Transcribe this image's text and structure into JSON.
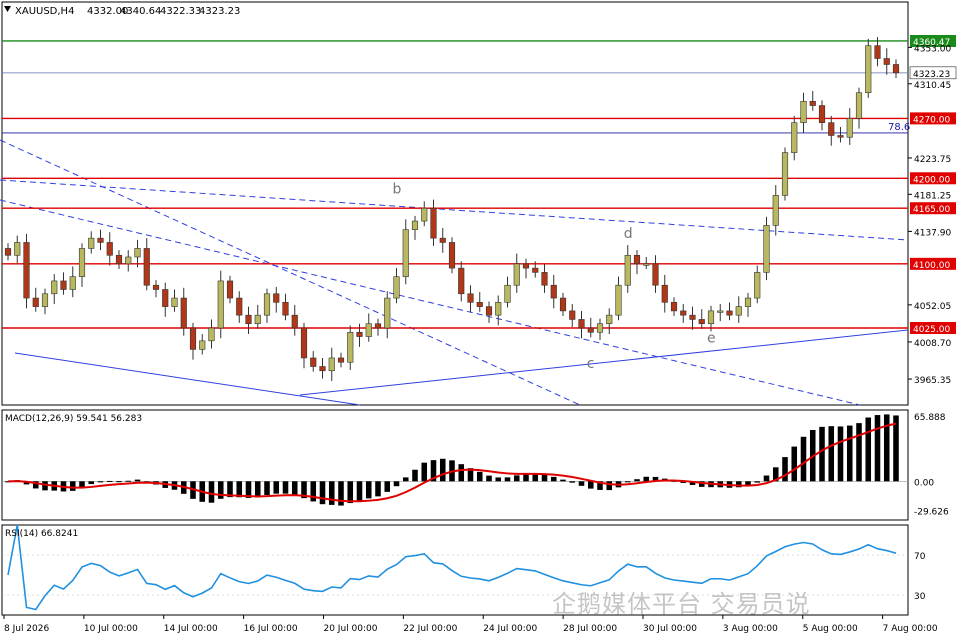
{
  "header": {
    "symbol": "XAUUSD,H4",
    "open": "4332.00",
    "high": "4340.64",
    "low": "4322.33",
    "close": "4323.23"
  },
  "watermark": "企鹅媒体平台 交易员说",
  "colors": {
    "bull": "#b8b860",
    "bear": "#b03818",
    "wick": "#333333",
    "level_red": "#e00000",
    "level_green": "#1a8a1a",
    "fib_blue": "#1a1aa0",
    "trend_blue": "#3040e0",
    "macd_signal": "#e00000",
    "rsi_line": "#2090e0"
  },
  "chart_data": [
    {
      "type": "candlestick",
      "title": "XAUUSD,H4",
      "ylim": [
        3935,
        4385
      ],
      "price_labels": [
        "4353.00",
        "4310.45",
        "4223.75",
        "4181.25",
        "4137.90",
        "4052.05",
        "4008.70",
        "3965.35"
      ],
      "levels": [
        {
          "value": 4360.47,
          "label": "4360.47",
          "kind": "green"
        },
        {
          "value": 4323.23,
          "label": "4323.23",
          "kind": "current"
        },
        {
          "value": 4270.0,
          "label": "4270.00",
          "kind": "red"
        },
        {
          "value": 4200.0,
          "label": "4200.00",
          "kind": "red"
        },
        {
          "value": 4165.0,
          "label": "4165.00",
          "kind": "red"
        },
        {
          "value": 4100.0,
          "label": "4100.00",
          "kind": "red"
        },
        {
          "value": 4025.0,
          "label": "4025.00",
          "kind": "red"
        }
      ],
      "fib_line": {
        "value": 4253,
        "label": "78.6"
      },
      "wave_labels": [
        {
          "text": "b",
          "index": 42,
          "value": 4182
        },
        {
          "text": "c",
          "index": 63,
          "value": 3978
        },
        {
          "text": "d",
          "index": 67,
          "value": 4130
        },
        {
          "text": "e",
          "index": 76,
          "value": 4008
        }
      ],
      "x_labels": [
        "8 Jul 2026",
        "10 Jul 00:00",
        "14 Jul 00:00",
        "16 Jul 00:00",
        "20 Jul 00:00",
        "22 Jul 00:00",
        "24 Jul 00:00",
        "28 Jul 00:00",
        "30 Jul 00:00",
        "3 Aug 00:00",
        "5 Aug 00:00",
        "7 Aug 00:00"
      ],
      "closes": [
        4110,
        4125,
        4060,
        4050,
        4065,
        4080,
        4070,
        4085,
        4118,
        4130,
        4125,
        4110,
        4100,
        4108,
        4118,
        4075,
        4070,
        4050,
        4060,
        4025,
        4000,
        4010,
        4025,
        4080,
        4060,
        4040,
        4030,
        4040,
        4065,
        4055,
        4040,
        4025,
        3990,
        3980,
        3975,
        3990,
        3985,
        4020,
        4015,
        4030,
        4025,
        4060,
        4085,
        4140,
        4150,
        4165,
        4130,
        4125,
        4095,
        4065,
        4055,
        4050,
        4040,
        4055,
        4075,
        4100,
        4095,
        4090,
        4075,
        4060,
        4045,
        4035,
        4025,
        4020,
        4030,
        4040,
        4075,
        4110,
        4100,
        4100,
        4075,
        4055,
        4045,
        4040,
        4035,
        4030,
        4045,
        4045,
        4040,
        4050,
        4060,
        4090,
        4145,
        4180,
        4230,
        4265,
        4290,
        4285,
        4265,
        4250,
        4248,
        4270,
        4300,
        4355,
        4340,
        4333,
        4323.23
      ],
      "macd": {
        "label": "MACD(12,26,9) 59.541 56.283",
        "ticks": [
          "65.888",
          "0.00",
          "-29.626"
        ],
        "ylim": [
          -39,
          72
        ]
      },
      "rsi": {
        "label": "RSI(14) 66.8241",
        "ticks": [
          "70",
          "30"
        ],
        "ylim": [
          10,
          100
        ]
      }
    }
  ]
}
